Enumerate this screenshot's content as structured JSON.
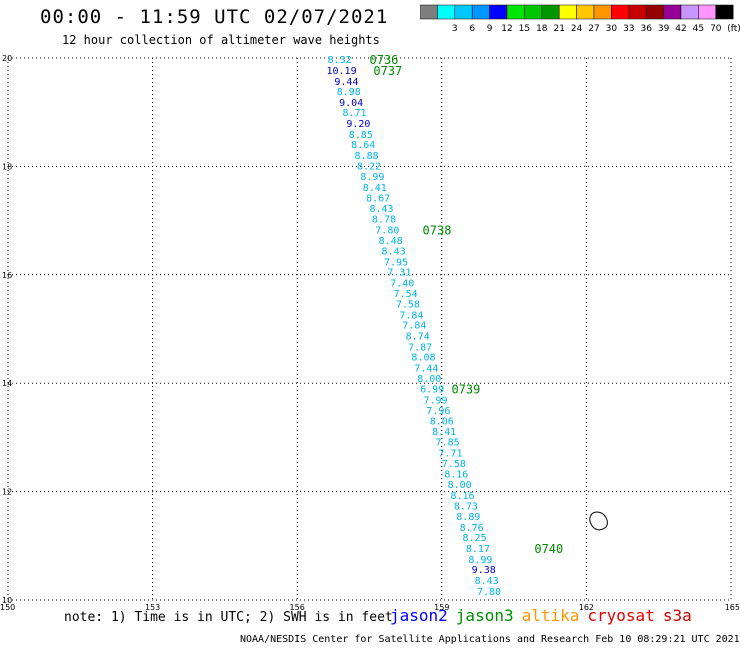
{
  "header": {
    "title": "00:00 - 11:59 UTC 02/07/2021",
    "subtitle": "12 hour collection of altimeter wave heights"
  },
  "legend": {
    "unit": "(ft)",
    "items": [
      {
        "label": "",
        "color": "#7f7f7f"
      },
      {
        "label": "3",
        "color": "#00ffff"
      },
      {
        "label": "6",
        "color": "#00c8ff"
      },
      {
        "label": "9",
        "color": "#0096ff"
      },
      {
        "label": "12",
        "color": "#0000ff"
      },
      {
        "label": "15",
        "color": "#00e600"
      },
      {
        "label": "18",
        "color": "#00c800"
      },
      {
        "label": "21",
        "color": "#009600"
      },
      {
        "label": "24",
        "color": "#ffff00"
      },
      {
        "label": "27",
        "color": "#ffc800"
      },
      {
        "label": "30",
        "color": "#ff9600"
      },
      {
        "label": "33",
        "color": "#ff0000"
      },
      {
        "label": "36",
        "color": "#c80000"
      },
      {
        "label": "39",
        "color": "#960000"
      },
      {
        "label": "42",
        "color": "#960096"
      },
      {
        "label": "45",
        "color": "#c896ff"
      },
      {
        "label": "70",
        "color": "#ff96ff"
      },
      {
        "label": "",
        "color": "#000000"
      }
    ]
  },
  "map": {
    "lon_range": [
      150,
      165
    ],
    "lat_range": [
      10,
      20
    ],
    "lon_ticks": [
      {
        "value": 150,
        "label": "150"
      },
      {
        "value": 153,
        "label": "153"
      },
      {
        "value": 156,
        "label": "156"
      },
      {
        "value": 159,
        "label": "159"
      },
      {
        "value": 162,
        "label": "162"
      },
      {
        "value": 165,
        "label": "165"
      }
    ],
    "lat_ticks": [
      {
        "value": 10,
        "label": "10"
      },
      {
        "value": 12,
        "label": "12"
      },
      {
        "value": 14,
        "label": "14"
      },
      {
        "value": 16,
        "label": "16"
      },
      {
        "value": 18,
        "label": "18"
      },
      {
        "value": 20,
        "label": "20"
      }
    ],
    "grid": "dotted"
  },
  "track": {
    "satellite": "jason3",
    "time_color": "#008c00",
    "points": [
      {
        "lon": 156.88,
        "lat": 19.98,
        "swh": "8.32",
        "color": "#00b4e6"
      },
      {
        "lon": 156.92,
        "lat": 19.78,
        "swh": "10.19",
        "color": "#0000c8"
      },
      {
        "lon": 157.02,
        "lat": 19.58,
        "swh": "9.44",
        "color": "#0000c8"
      },
      {
        "lon": 157.07,
        "lat": 19.39,
        "swh": "8.98",
        "color": "#00b4e6"
      },
      {
        "lon": 157.12,
        "lat": 19.19,
        "swh": "9.04",
        "color": "#0000c8"
      },
      {
        "lon": 157.19,
        "lat": 19.0,
        "swh": "8.71",
        "color": "#00b4e6"
      },
      {
        "lon": 157.27,
        "lat": 18.8,
        "swh": "9.20",
        "color": "#0000c8"
      },
      {
        "lon": 157.32,
        "lat": 18.6,
        "swh": "8.85",
        "color": "#00b4e6"
      },
      {
        "lon": 157.37,
        "lat": 18.41,
        "swh": "8.64",
        "color": "#00b4e6"
      },
      {
        "lon": 157.44,
        "lat": 18.21,
        "swh": "8.88",
        "color": "#00b4e6"
      },
      {
        "lon": 157.49,
        "lat": 18.02,
        "swh": "8.22",
        "color": "#00b4e6"
      },
      {
        "lon": 157.56,
        "lat": 17.82,
        "swh": "8.99",
        "color": "#00b4e6"
      },
      {
        "lon": 157.61,
        "lat": 17.62,
        "swh": "8.41",
        "color": "#00b4e6"
      },
      {
        "lon": 157.68,
        "lat": 17.43,
        "swh": "8.67",
        "color": "#00b4e6"
      },
      {
        "lon": 157.75,
        "lat": 17.23,
        "swh": "8.43",
        "color": "#00b4e6"
      },
      {
        "lon": 157.8,
        "lat": 17.04,
        "swh": "8.78",
        "color": "#00b4e6"
      },
      {
        "lon": 157.87,
        "lat": 16.84,
        "swh": "7.80",
        "color": "#00b4e6"
      },
      {
        "lon": 157.94,
        "lat": 16.64,
        "swh": "8.48",
        "color": "#00b4e6"
      },
      {
        "lon": 158.0,
        "lat": 16.45,
        "swh": "8.43",
        "color": "#00b4e6"
      },
      {
        "lon": 158.05,
        "lat": 16.25,
        "swh": "7.95",
        "color": "#00b4e6"
      },
      {
        "lon": 158.12,
        "lat": 16.06,
        "swh": "7.31",
        "color": "#00b4e6"
      },
      {
        "lon": 158.18,
        "lat": 15.86,
        "swh": "7.40",
        "color": "#00b4e6"
      },
      {
        "lon": 158.25,
        "lat": 15.66,
        "swh": "7.54",
        "color": "#00b4e6"
      },
      {
        "lon": 158.3,
        "lat": 15.47,
        "swh": "7.58",
        "color": "#00b4e6"
      },
      {
        "lon": 158.37,
        "lat": 15.27,
        "swh": "7.84",
        "color": "#00b4e6"
      },
      {
        "lon": 158.43,
        "lat": 15.08,
        "swh": "7.84",
        "color": "#00b4e6"
      },
      {
        "lon": 158.5,
        "lat": 14.88,
        "swh": "8.74",
        "color": "#00b4e6"
      },
      {
        "lon": 158.55,
        "lat": 14.68,
        "swh": "7.87",
        "color": "#00b4e6"
      },
      {
        "lon": 158.62,
        "lat": 14.49,
        "swh": "8.08",
        "color": "#00b4e6"
      },
      {
        "lon": 158.68,
        "lat": 14.29,
        "swh": "7.44",
        "color": "#00b4e6"
      },
      {
        "lon": 158.74,
        "lat": 14.1,
        "swh": "8.00",
        "color": "#00b4e6"
      },
      {
        "lon": 158.8,
        "lat": 13.9,
        "swh": "6.99",
        "color": "#00b4e6"
      },
      {
        "lon": 158.87,
        "lat": 13.7,
        "swh": "7.99",
        "color": "#00b4e6"
      },
      {
        "lon": 158.93,
        "lat": 13.51,
        "swh": "7.96",
        "color": "#00b4e6"
      },
      {
        "lon": 159.0,
        "lat": 13.31,
        "swh": "8.06",
        "color": "#00b4e6"
      },
      {
        "lon": 159.05,
        "lat": 13.12,
        "swh": "8.41",
        "color": "#00b4e6"
      },
      {
        "lon": 159.12,
        "lat": 12.92,
        "swh": "7.85",
        "color": "#00b4e6"
      },
      {
        "lon": 159.18,
        "lat": 12.72,
        "swh": "7.71",
        "color": "#00b4e6"
      },
      {
        "lon": 159.25,
        "lat": 12.53,
        "swh": "7.58",
        "color": "#00b4e6"
      },
      {
        "lon": 159.3,
        "lat": 12.33,
        "swh": "8.16",
        "color": "#00b4e6"
      },
      {
        "lon": 159.37,
        "lat": 12.14,
        "swh": "8.00",
        "color": "#00b4e6"
      },
      {
        "lon": 159.43,
        "lat": 11.94,
        "swh": "8.16",
        "color": "#00b4e6"
      },
      {
        "lon": 159.5,
        "lat": 11.74,
        "swh": "8.73",
        "color": "#00b4e6"
      },
      {
        "lon": 159.55,
        "lat": 11.55,
        "swh": "8.89",
        "color": "#00b4e6"
      },
      {
        "lon": 159.62,
        "lat": 11.35,
        "swh": "8.76",
        "color": "#00b4e6"
      },
      {
        "lon": 159.68,
        "lat": 11.16,
        "swh": "8.25",
        "color": "#00b4e6"
      },
      {
        "lon": 159.75,
        "lat": 10.96,
        "swh": "8.17",
        "color": "#00b4e6"
      },
      {
        "lon": 159.8,
        "lat": 10.76,
        "swh": "8.99",
        "color": "#00b4e6"
      },
      {
        "lon": 159.87,
        "lat": 10.57,
        "swh": "9.38",
        "color": "#0000c8"
      },
      {
        "lon": 159.93,
        "lat": 10.37,
        "swh": "8.43",
        "color": "#00b4e6"
      },
      {
        "lon": 159.98,
        "lat": 10.17,
        "swh": "7.80",
        "color": "#00b4e6"
      }
    ],
    "times": [
      {
        "lon": 157.8,
        "lat": 19.98,
        "label": "0736"
      },
      {
        "lon": 157.88,
        "lat": 19.78,
        "label": "0737"
      },
      {
        "lon": 158.9,
        "lat": 16.84,
        "label": "0738"
      },
      {
        "lon": 159.5,
        "lat": 13.9,
        "label": "0739"
      },
      {
        "lon": 161.22,
        "lat": 10.96,
        "label": "0740"
      }
    ]
  },
  "notes": {
    "text": "note: 1) Time is in UTC; 2) SWH is in feet"
  },
  "satellites": [
    {
      "name": "jason2",
      "color": "#0000ff"
    },
    {
      "name": "jason3",
      "color": "#008c00"
    },
    {
      "name": "altika",
      "color": "#ff9600"
    },
    {
      "name": "cryosat",
      "color": "#e60000"
    },
    {
      "name": "s3a",
      "color": "#c80000"
    }
  ],
  "credit": {
    "text": "NOAA/NESDIS Center for Satellite Applications and Research    Feb 10 08:29:21 UTC 2021"
  }
}
